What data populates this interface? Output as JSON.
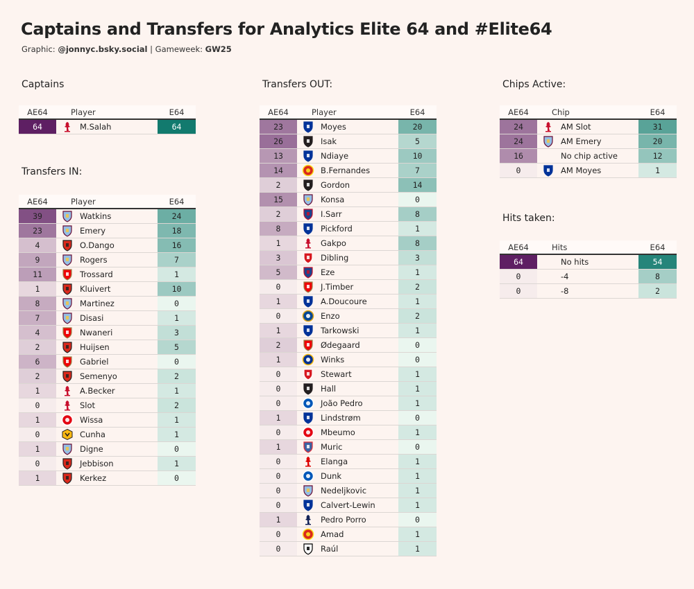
{
  "header": {
    "title": "Captains and Transfers for Analytics Elite 64 and #Elite64",
    "graphic_label": "Graphic:",
    "graphic_handle": "@jonnyc.bsky.social",
    "sep": "|",
    "gameweek_label": "Gameweek:",
    "gameweek": "GW25"
  },
  "columns": {
    "left": "AE64",
    "player": "Player",
    "chip": "Chip",
    "hits": "Hits",
    "right": "E64"
  },
  "colors": {
    "ae64_scale": [
      "#f6ecec",
      "#5e1f63"
    ],
    "e64_scale": [
      "#eaf6ef",
      "#127a6e"
    ],
    "background": "#fdf4f0"
  },
  "chart_data": [
    {
      "type": "table",
      "title": "Captains",
      "columns": [
        "AE64",
        "Player",
        "E64"
      ],
      "rows": [
        {
          "ae64": 64,
          "name": "M.Salah",
          "club": "liverpool",
          "e64": 64
        }
      ]
    },
    {
      "type": "table",
      "title": "Transfers IN:",
      "columns": [
        "AE64",
        "Player",
        "E64"
      ],
      "rows": [
        {
          "ae64": 39,
          "name": "Watkins",
          "club": "villa",
          "e64": 24
        },
        {
          "ae64": 23,
          "name": "Emery",
          "club": "villa",
          "e64": 18
        },
        {
          "ae64": 4,
          "name": "O.Dango",
          "club": "bournemouth",
          "e64": 16
        },
        {
          "ae64": 9,
          "name": "Rogers",
          "club": "villa",
          "e64": 7
        },
        {
          "ae64": 11,
          "name": "Trossard",
          "club": "arsenal",
          "e64": 1
        },
        {
          "ae64": 1,
          "name": "Kluivert",
          "club": "bournemouth",
          "e64": 10
        },
        {
          "ae64": 8,
          "name": "Martinez",
          "club": "villa",
          "e64": 0
        },
        {
          "ae64": 7,
          "name": "Disasi",
          "club": "villa",
          "e64": 1
        },
        {
          "ae64": 4,
          "name": "Nwaneri",
          "club": "arsenal",
          "e64": 3
        },
        {
          "ae64": 2,
          "name": "Huijsen",
          "club": "bournemouth",
          "e64": 5
        },
        {
          "ae64": 6,
          "name": "Gabriel",
          "club": "arsenal",
          "e64": 0
        },
        {
          "ae64": 2,
          "name": "Semenyo",
          "club": "bournemouth",
          "e64": 2
        },
        {
          "ae64": 1,
          "name": "A.Becker",
          "club": "liverpool",
          "e64": 1
        },
        {
          "ae64": 0,
          "name": "Slot",
          "club": "liverpool",
          "e64": 2
        },
        {
          "ae64": 1,
          "name": "Wissa",
          "club": "brentford",
          "e64": 1
        },
        {
          "ae64": 0,
          "name": "Cunha",
          "club": "wolves",
          "e64": 1
        },
        {
          "ae64": 1,
          "name": "Digne",
          "club": "villa",
          "e64": 0
        },
        {
          "ae64": 0,
          "name": "Jebbison",
          "club": "bournemouth",
          "e64": 1
        },
        {
          "ae64": 1,
          "name": "Kerkez",
          "club": "bournemouth",
          "e64": 0
        }
      ]
    },
    {
      "type": "table",
      "title": "Transfers OUT:",
      "columns": [
        "AE64",
        "Player",
        "E64"
      ],
      "rows": [
        {
          "ae64": 23,
          "name": "Moyes",
          "club": "everton",
          "e64": 20
        },
        {
          "ae64": 26,
          "name": "Isak",
          "club": "newcastle",
          "e64": 5
        },
        {
          "ae64": 13,
          "name": "Ndiaye",
          "club": "everton",
          "e64": 10
        },
        {
          "ae64": 14,
          "name": "B.Fernandes",
          "club": "manutd",
          "e64": 7
        },
        {
          "ae64": 2,
          "name": "Gordon",
          "club": "newcastle",
          "e64": 14
        },
        {
          "ae64": 15,
          "name": "Konsa",
          "club": "villa",
          "e64": 0
        },
        {
          "ae64": 2,
          "name": "I.Sarr",
          "club": "palace",
          "e64": 8
        },
        {
          "ae64": 8,
          "name": "Pickford",
          "club": "everton",
          "e64": 1
        },
        {
          "ae64": 1,
          "name": "Gakpo",
          "club": "liverpool",
          "e64": 8
        },
        {
          "ae64": 3,
          "name": "Dibling",
          "club": "southampton",
          "e64": 3
        },
        {
          "ae64": 5,
          "name": "Eze",
          "club": "palace",
          "e64": 1
        },
        {
          "ae64": 0,
          "name": "J.Timber",
          "club": "arsenal",
          "e64": 2
        },
        {
          "ae64": 1,
          "name": "A.Doucoure",
          "club": "everton",
          "e64": 1
        },
        {
          "ae64": 0,
          "name": "Enzo",
          "club": "chelsea",
          "e64": 2
        },
        {
          "ae64": 1,
          "name": "Tarkowski",
          "club": "everton",
          "e64": 1
        },
        {
          "ae64": 2,
          "name": "Ødegaard",
          "club": "arsenal",
          "e64": 0
        },
        {
          "ae64": 1,
          "name": "Winks",
          "club": "leicester",
          "e64": 0
        },
        {
          "ae64": 0,
          "name": "Stewart",
          "club": "southampton",
          "e64": 1
        },
        {
          "ae64": 0,
          "name": "Hall",
          "club": "newcastle",
          "e64": 1
        },
        {
          "ae64": 0,
          "name": "João Pedro",
          "club": "brighton",
          "e64": 1
        },
        {
          "ae64": 1,
          "name": "Lindstrøm",
          "club": "everton",
          "e64": 0
        },
        {
          "ae64": 0,
          "name": "Mbeumo",
          "club": "brentford",
          "e64": 1
        },
        {
          "ae64": 1,
          "name": "Muric",
          "club": "ipswich",
          "e64": 0
        },
        {
          "ae64": 0,
          "name": "Elanga",
          "club": "forest",
          "e64": 1
        },
        {
          "ae64": 0,
          "name": "Dunk",
          "club": "brighton",
          "e64": 1
        },
        {
          "ae64": 0,
          "name": "Nedeljkovic",
          "club": "villa",
          "e64": 1
        },
        {
          "ae64": 0,
          "name": "Calvert-Lewin",
          "club": "everton",
          "e64": 1
        },
        {
          "ae64": 1,
          "name": "Pedro Porro",
          "club": "spurs",
          "e64": 0
        },
        {
          "ae64": 0,
          "name": "Amad",
          "club": "manutd",
          "e64": 1
        },
        {
          "ae64": 0,
          "name": "Raúl",
          "club": "fulham",
          "e64": 1
        }
      ]
    },
    {
      "type": "table",
      "title": "Chips Active:",
      "columns": [
        "AE64",
        "Chip",
        "E64"
      ],
      "rows": [
        {
          "ae64": 24,
          "name": "AM Slot",
          "club": "liverpool",
          "e64": 31
        },
        {
          "ae64": 24,
          "name": "AM Emery",
          "club": "villa",
          "e64": 20
        },
        {
          "ae64": 16,
          "name": "No chip active",
          "club": "",
          "e64": 12
        },
        {
          "ae64": 0,
          "name": "AM Moyes",
          "club": "everton",
          "e64": 1
        }
      ]
    },
    {
      "type": "table",
      "title": "Hits taken:",
      "columns": [
        "AE64",
        "Hits",
        "E64"
      ],
      "rows": [
        {
          "ae64": 64,
          "name": "No hits",
          "club": "",
          "e64": 54
        },
        {
          "ae64": 0,
          "name": "-4",
          "club": "",
          "e64": 8
        },
        {
          "ae64": 0,
          "name": "-8",
          "club": "",
          "e64": 2
        }
      ]
    }
  ]
}
